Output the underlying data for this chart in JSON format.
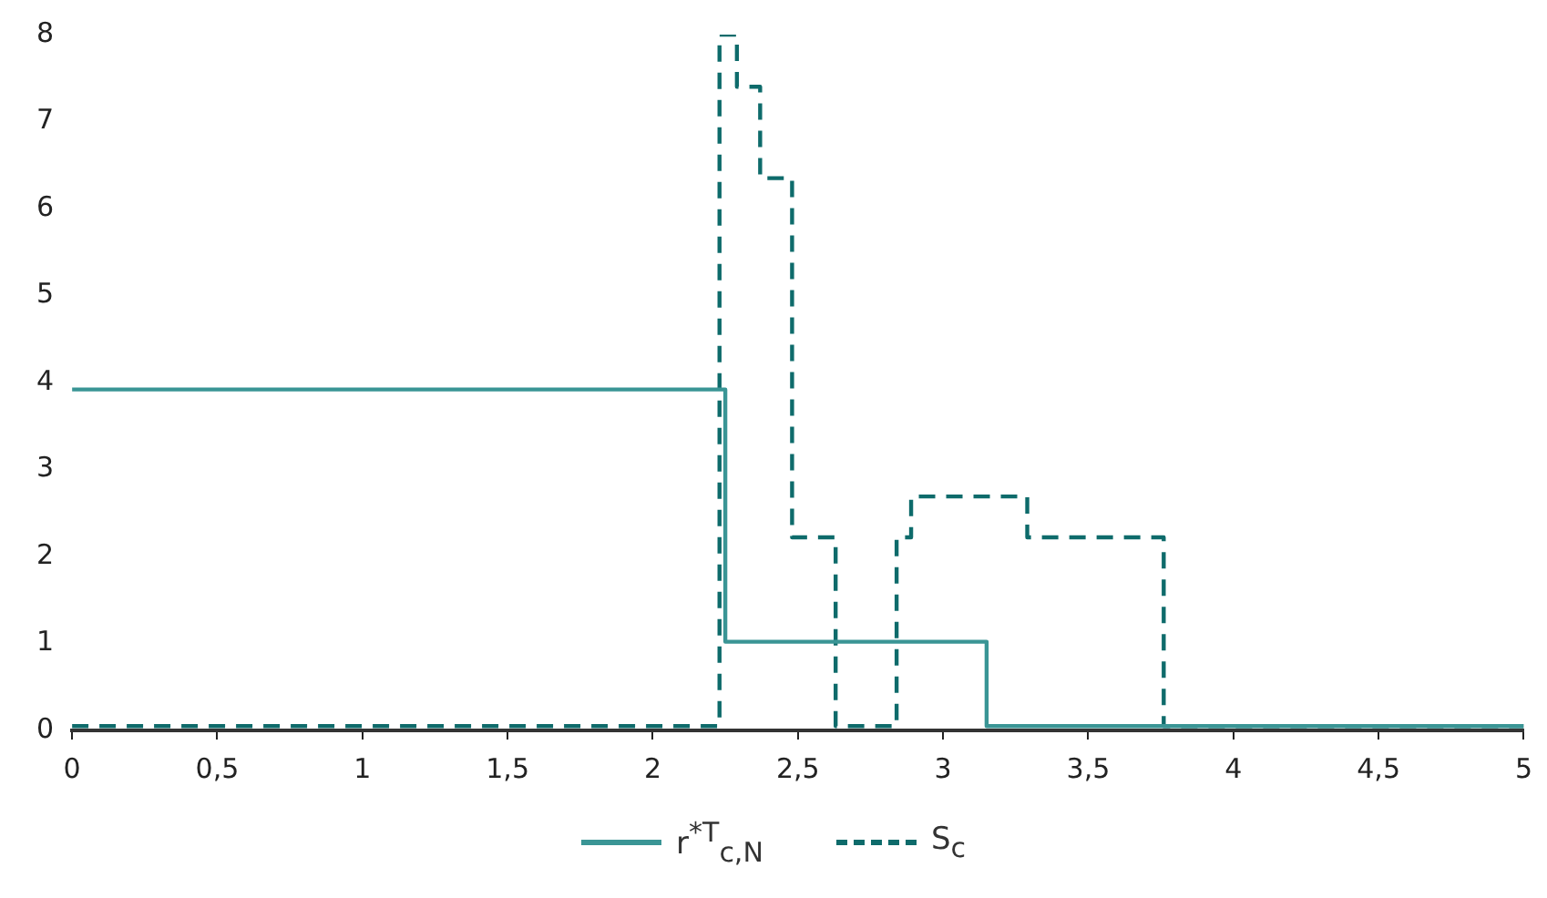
{
  "chart_data": {
    "type": "step",
    "xlim": [
      0,
      5
    ],
    "xticks": [
      0,
      {
        "value": 0.5,
        "label": "0,5"
      },
      1,
      {
        "value": 1.5,
        "label": "1,5"
      },
      2,
      {
        "value": 2.5,
        "label": "2,5"
      },
      3,
      {
        "value": 3.5,
        "label": "3,5"
      },
      4,
      {
        "value": 4.5,
        "label": "4,5"
      },
      5
    ],
    "ylim": [
      0,
      8
    ],
    "yticks": [
      0,
      1,
      2,
      3,
      4,
      5,
      6,
      7,
      8
    ],
    "grid": false,
    "legend": "bottom",
    "marker": "none",
    "series": [
      {
        "name": "r$^{*T}$$_{c,N}$",
        "color": "#3a9595",
        "line_style": "solid",
        "x": [
          0,
          2.25,
          3.15,
          5
        ],
        "values": [
          3.92,
          1.02,
          0.05,
          0.05
        ]
      },
      {
        "name": "S$_{c}$",
        "color": "#0e6b6b",
        "line_style": "dashed",
        "x": [
          0,
          2.23,
          2.29,
          2.37,
          2.48,
          2.63,
          2.84,
          2.89,
          3.29,
          3.76,
          5
        ],
        "values": [
          0.05,
          8,
          7.4,
          6.35,
          2.22,
          0.05,
          2.22,
          2.69,
          2.22,
          0.05,
          0.05
        ]
      }
    ]
  }
}
